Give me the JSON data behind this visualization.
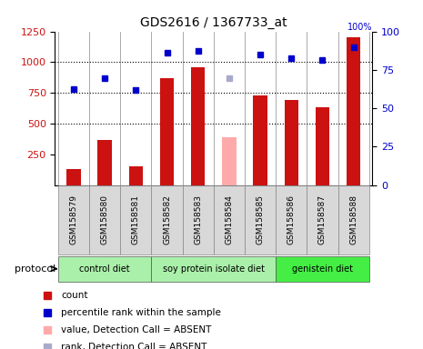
{
  "title": "GDS2616 / 1367733_at",
  "samples": [
    "GSM158579",
    "GSM158580",
    "GSM158581",
    "GSM158582",
    "GSM158583",
    "GSM158584",
    "GSM158585",
    "GSM158586",
    "GSM158587",
    "GSM158588"
  ],
  "bar_values": [
    130,
    370,
    150,
    870,
    960,
    null,
    730,
    690,
    630,
    1200
  ],
  "bar_absent_values": [
    null,
    null,
    null,
    null,
    null,
    390,
    null,
    null,
    null,
    null
  ],
  "dot_values": [
    780,
    870,
    770,
    1080,
    1090,
    null,
    1060,
    1030,
    1020,
    1120
  ],
  "dot_absent_values": [
    null,
    null,
    null,
    null,
    null,
    870,
    null,
    null,
    null,
    null
  ],
  "bar_color": "#cc1111",
  "bar_absent_color": "#ffaaaa",
  "dot_color": "#0000cc",
  "dot_absent_color": "#aaaacc",
  "ylim_left": [
    0,
    1250
  ],
  "ylim_right": [
    0,
    100
  ],
  "yticks_left": [
    250,
    500,
    750,
    1000,
    1250
  ],
  "yticks_right": [
    0,
    25,
    50,
    75,
    100
  ],
  "protocol_groups": [
    {
      "label": "control diet",
      "start": 0,
      "end": 2,
      "color": "#aaf0aa"
    },
    {
      "label": "soy protein isolate diet",
      "start": 3,
      "end": 6,
      "color": "#aaf0aa"
    },
    {
      "label": "genistein diet",
      "start": 7,
      "end": 9,
      "color": "#44ee44"
    }
  ],
  "legend_items": [
    {
      "label": "count",
      "color": "#cc1111"
    },
    {
      "label": "percentile rank within the sample",
      "color": "#0000cc"
    },
    {
      "label": "value, Detection Call = ABSENT",
      "color": "#ffaaaa"
    },
    {
      "label": "rank, Detection Call = ABSENT",
      "color": "#aaaacc"
    }
  ],
  "grid_lines": [
    500,
    750,
    1000
  ],
  "sample_box_color": "#d8d8d8",
  "sample_box_edge": "#888888",
  "bar_width": 0.45
}
